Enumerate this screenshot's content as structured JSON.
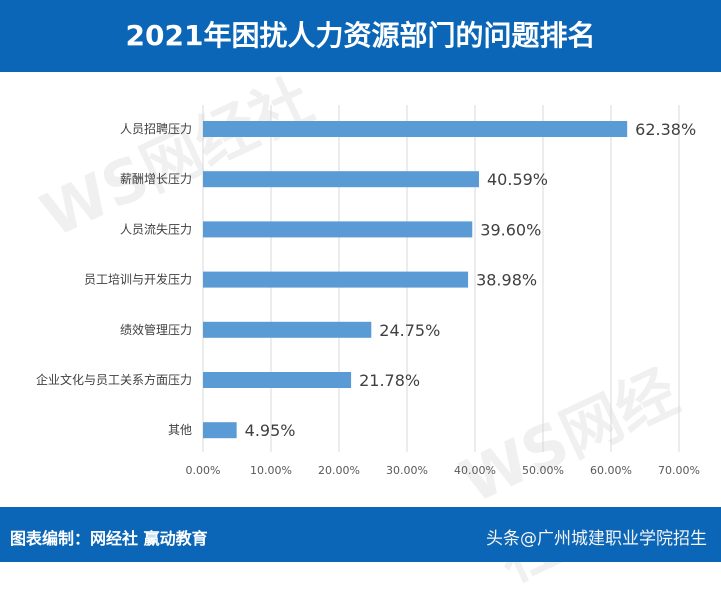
{
  "header": {
    "title": "2021年困扰人力资源部门的问题排名"
  },
  "footer": {
    "credit": "图表编制：网经社  赢动教育",
    "source": "头条@广州城建职业学院招生"
  },
  "watermark": "WS网经社",
  "colors": {
    "header": "#0b66b7",
    "bar": "#5b9bd5"
  },
  "chart_data": {
    "type": "bar",
    "orientation": "horizontal",
    "title": "2021年困扰人力资源部门的问题排名",
    "categories": [
      "人员招聘压力",
      "薪酬增长压力",
      "人员流失压力",
      "员工培训与开发压力",
      "绩效管理压力",
      "企业文化与员工关系方面压力",
      "其他"
    ],
    "values": [
      62.38,
      40.59,
      39.6,
      38.98,
      24.75,
      21.78,
      4.95
    ],
    "data_labels": [
      "62.38%",
      "40.59%",
      "39.60%",
      "38.98%",
      "24.75%",
      "21.78%",
      "4.95%"
    ],
    "xlim": [
      0,
      70
    ],
    "x_ticks": [
      "0.00%",
      "10.00%",
      "20.00%",
      "30.00%",
      "40.00%",
      "50.00%",
      "60.00%",
      "70.00%"
    ],
    "grid": true,
    "legend": "none"
  }
}
